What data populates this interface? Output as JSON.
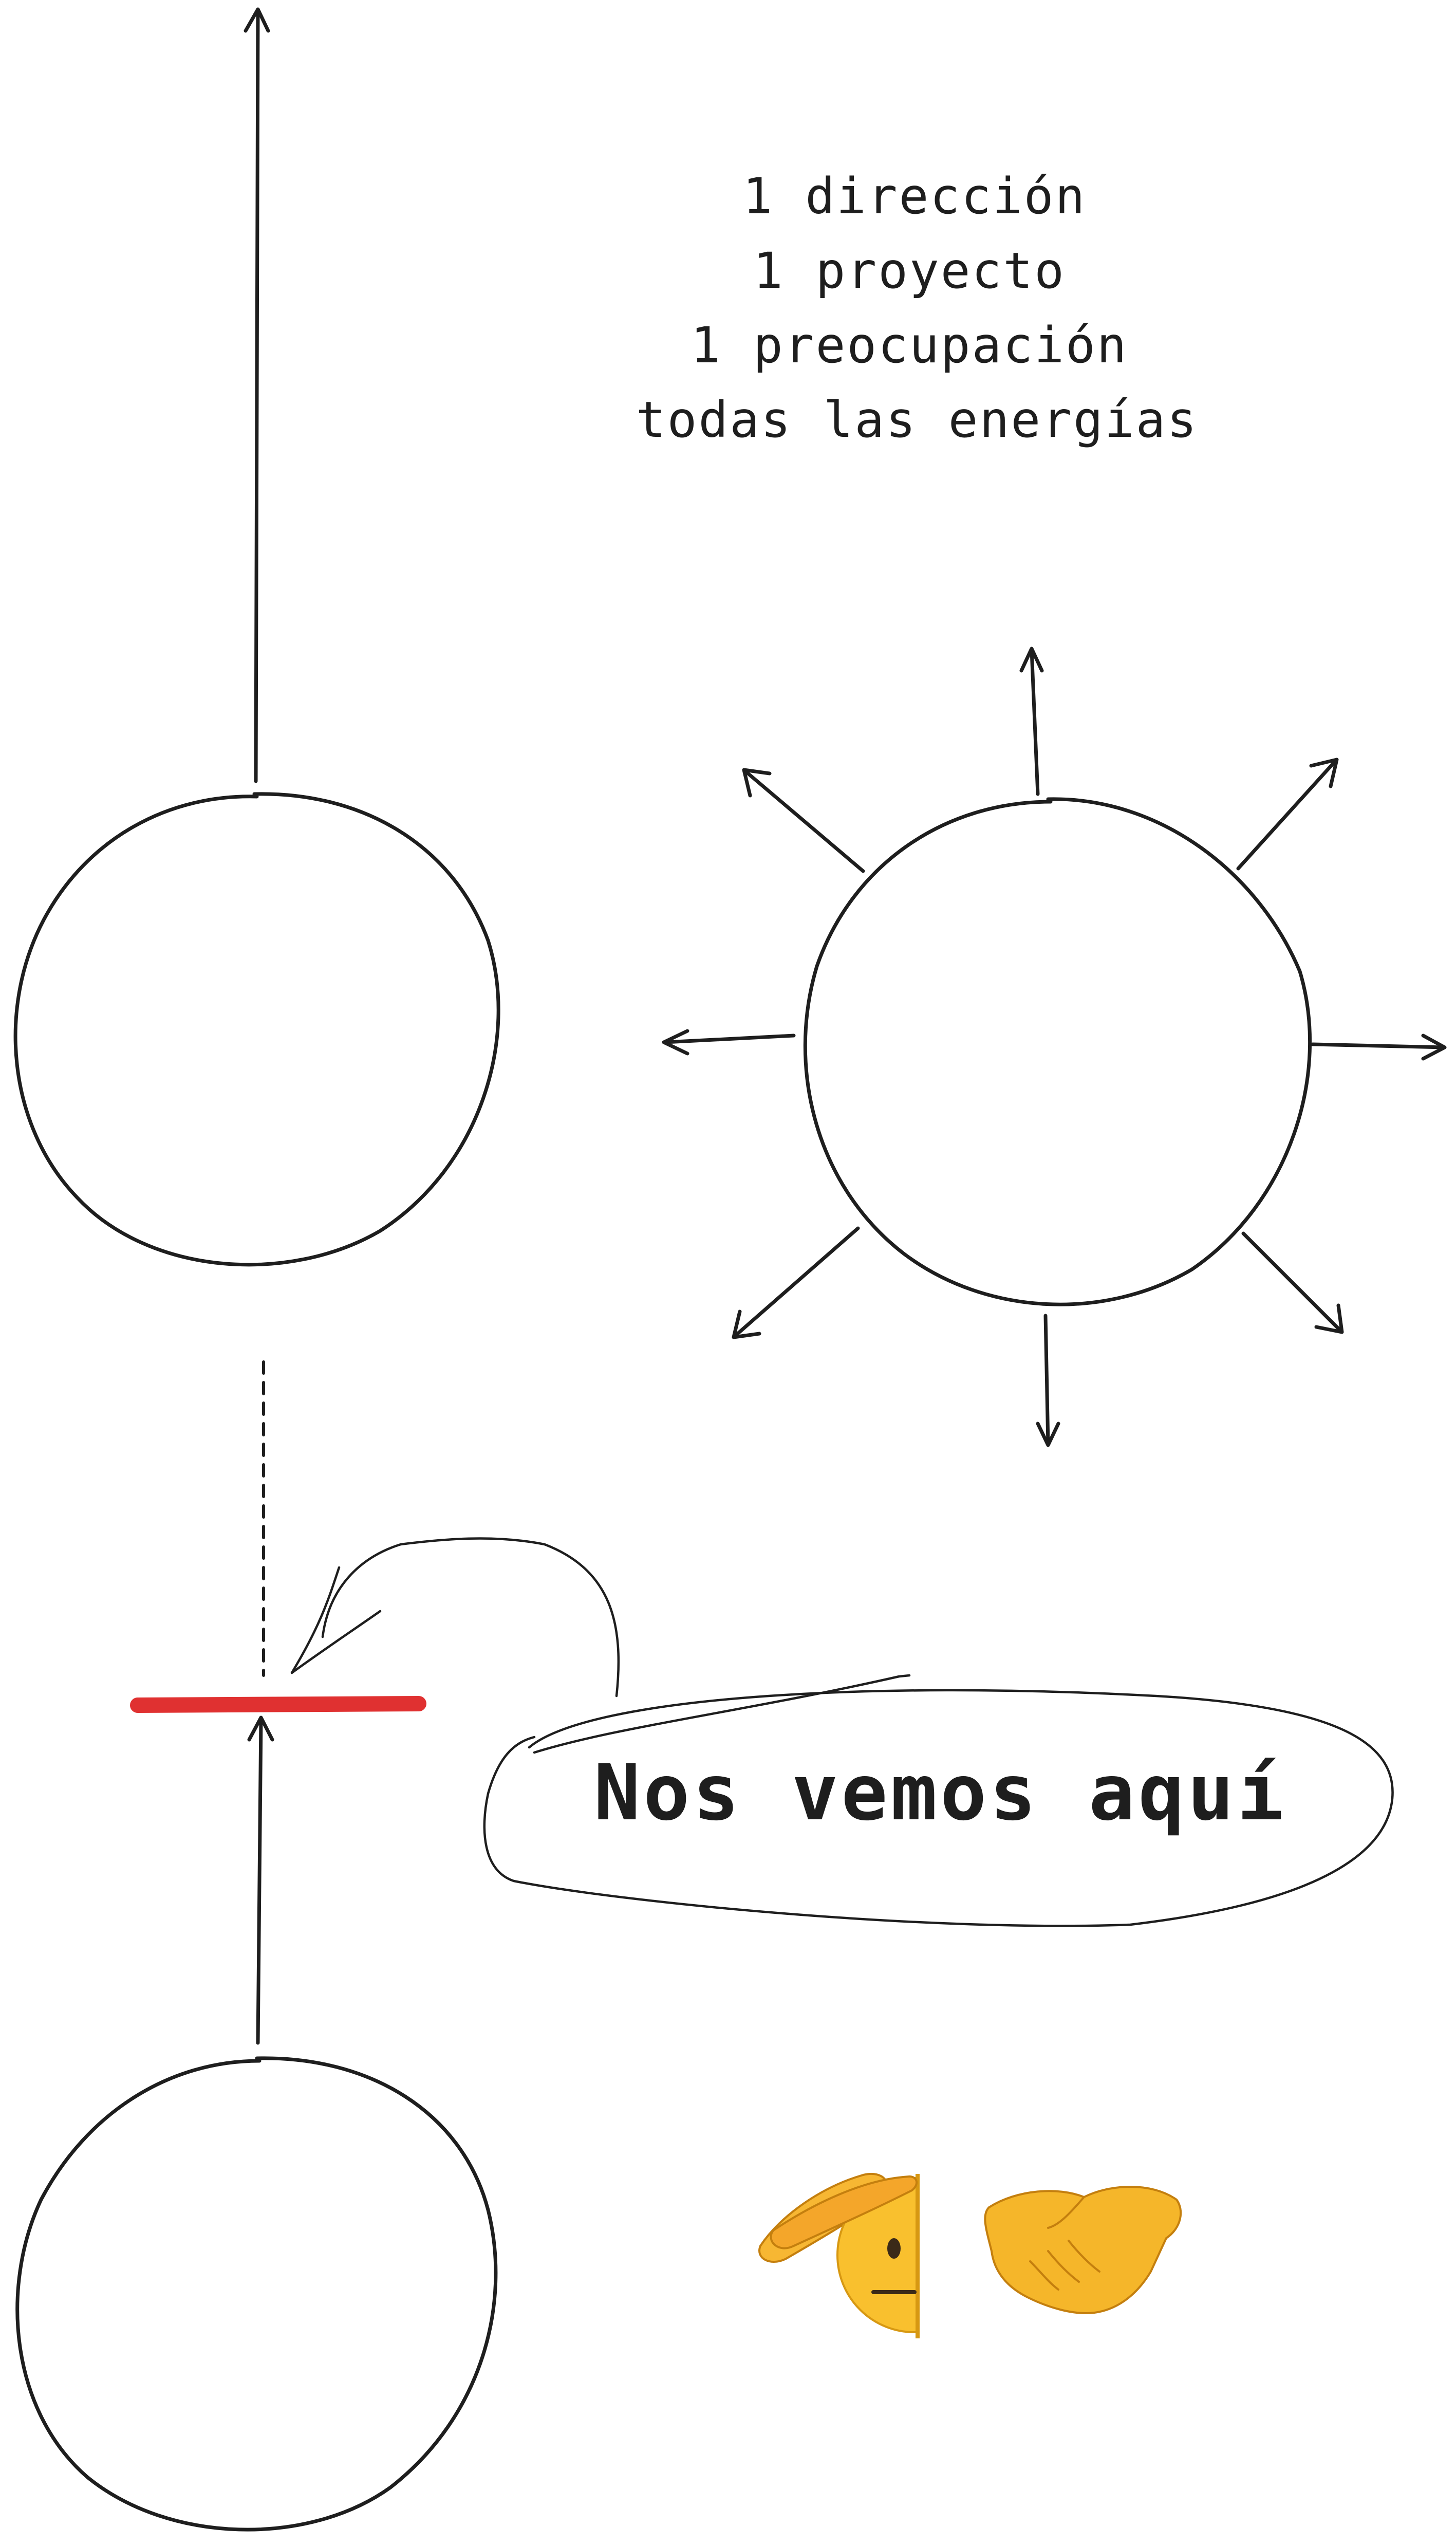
{
  "notes": {
    "line1": "1 dirección",
    "line2": "1 proyecto",
    "line3": "1 preocupación",
    "line4": "todas las energías"
  },
  "callout": {
    "text": "Nos vemos aquí"
  },
  "emoji": {
    "saluting_face": "🫡",
    "handshake": "🤝"
  },
  "colors": {
    "ink": "#1e1e1e",
    "marker_red": "#e03131"
  },
  "icons": {
    "salute": "saluting-face-icon",
    "handshake": "handshake-icon"
  }
}
